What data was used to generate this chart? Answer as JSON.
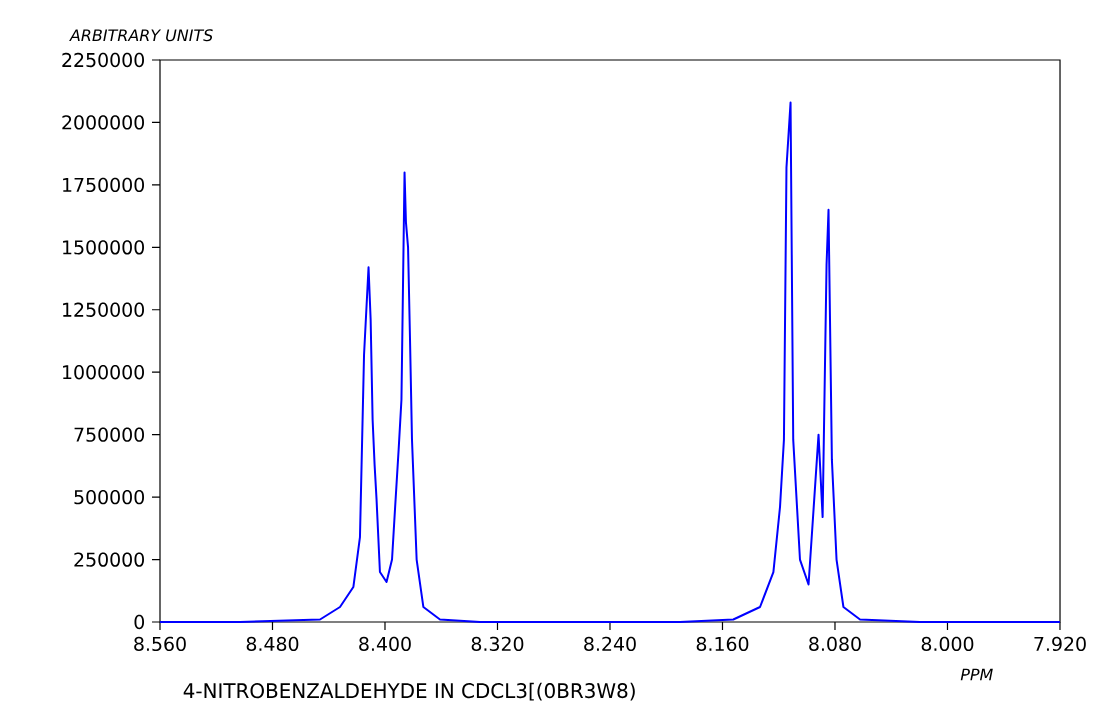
{
  "chart_data": {
    "type": "line",
    "title": "4-NITROBENZALDEHYDE IN CDCL3[(0BR3W8)",
    "xlabel": "PPM",
    "ylabel": "ARBITRARY UNITS",
    "xlim": [
      8.56,
      7.92
    ],
    "xticks": [
      {
        "value": 8.56,
        "label": "8.560"
      },
      {
        "value": 8.48,
        "label": "8.480"
      },
      {
        "value": 8.4,
        "label": "8.400"
      },
      {
        "value": 8.32,
        "label": "8.320"
      },
      {
        "value": 8.24,
        "label": "8.240"
      },
      {
        "value": 8.16,
        "label": "8.160"
      },
      {
        "value": 8.08,
        "label": "8.080"
      },
      {
        "value": 8.0,
        "label": "8.000"
      },
      {
        "value": 7.92,
        "label": "7.920"
      }
    ],
    "ylim": [
      0,
      2250000
    ],
    "yticks": [
      0,
      250000,
      500000,
      750000,
      1000000,
      1250000,
      1500000,
      1750000,
      2000000,
      2250000
    ],
    "grid": false,
    "marker": "none",
    "line_style": "solid",
    "series": [
      {
        "color": "#0000ff",
        "x": [
          8.56,
          8.5031,
          8.4462,
          8.432,
          8.4225,
          8.4178,
          8.4149,
          8.4117,
          8.4102,
          8.4088,
          8.4074,
          8.406,
          8.4036,
          8.3989,
          8.395,
          8.3929,
          8.3903,
          8.3883,
          8.3861,
          8.3851,
          8.3836,
          8.3822,
          8.3808,
          8.3775,
          8.3727,
          8.3609,
          8.3324,
          8.2471,
          8.1902,
          8.1523,
          8.1333,
          8.1238,
          8.1191,
          8.1163,
          8.1145,
          8.1116,
          8.1097,
          8.1049,
          8.0988,
          8.0917,
          8.0888,
          8.086,
          8.0846,
          8.0822,
          8.0789,
          8.074,
          8.0622,
          8.0196,
          7.92
        ],
        "values": [
          0,
          0,
          10000,
          60000,
          140000,
          340000,
          1070000,
          1420000,
          1210000,
          810000,
          630000,
          490000,
          200000,
          160000,
          250000,
          450000,
          690000,
          890000,
          1800000,
          1600000,
          1500000,
          1130000,
          730000,
          250000,
          60000,
          10000,
          0,
          0,
          0,
          10000,
          60000,
          200000,
          460000,
          730000,
          1820000,
          2080000,
          730000,
          250000,
          150000,
          750000,
          420000,
          1430000,
          1650000,
          650000,
          250000,
          60000,
          10000,
          0,
          0
        ]
      }
    ]
  }
}
